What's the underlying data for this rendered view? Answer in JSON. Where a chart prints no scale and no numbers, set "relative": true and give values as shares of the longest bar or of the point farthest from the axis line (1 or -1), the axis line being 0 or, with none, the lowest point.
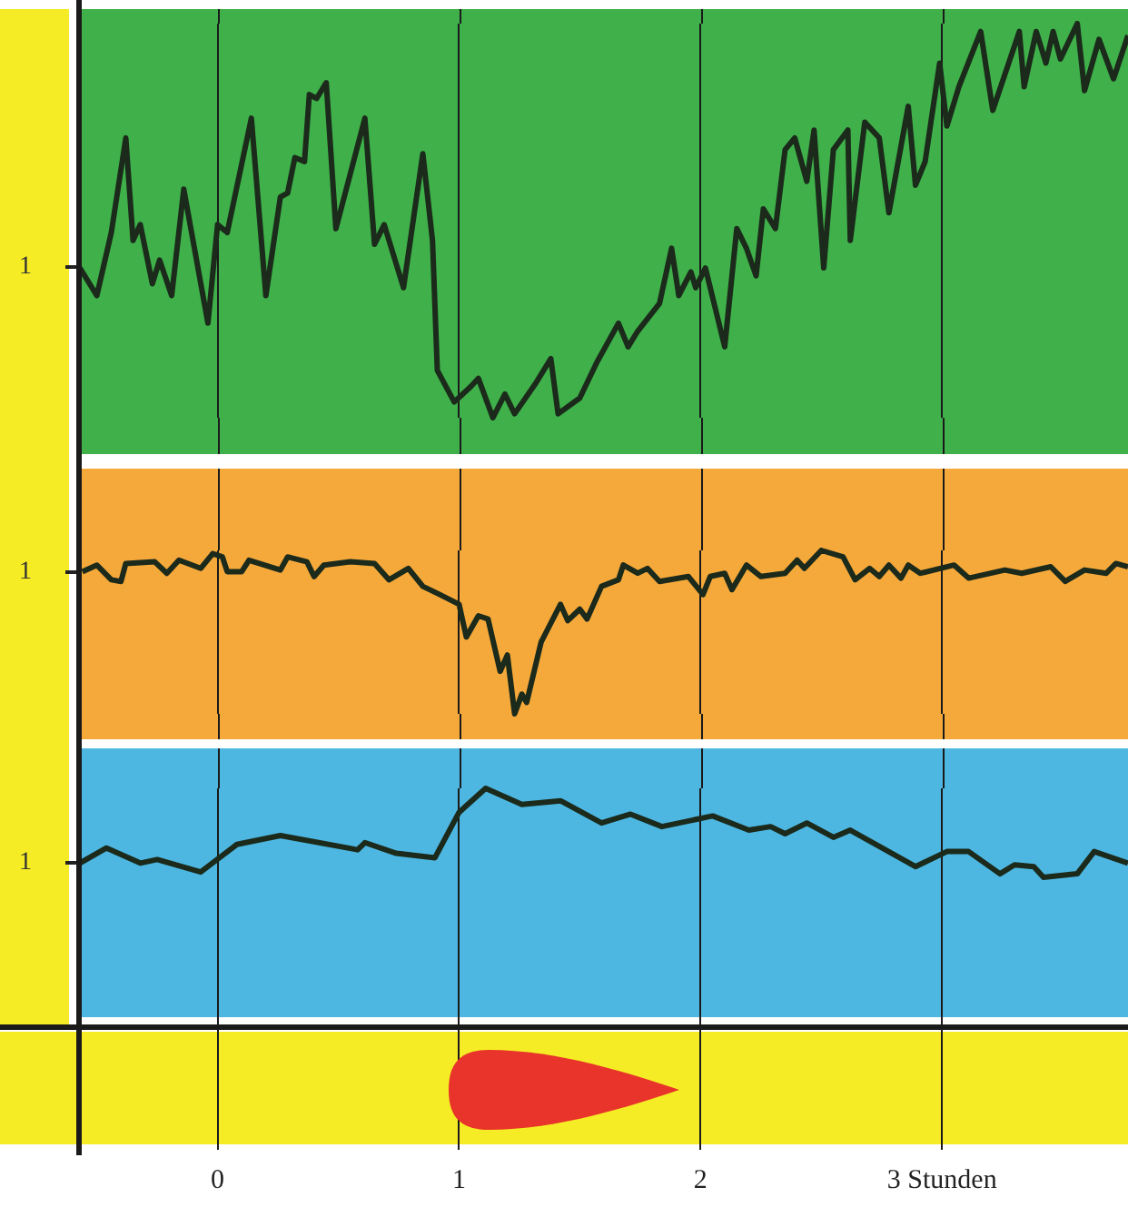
{
  "chart_data": [
    {
      "type": "line",
      "relative": true,
      "xlim": [
        -0.57,
        3.77
      ],
      "xticks": [
        0,
        1,
        2,
        3
      ],
      "grid": "x",
      "legend": false,
      "marker": "none",
      "line_style": "solid",
      "tick_labels": false,
      "annotations": [
        "1"
      ],
      "series": [
        {
          "color": "#1b2a1b",
          "x": [
            -0.57,
            -0.5,
            -0.44,
            -0.38,
            -0.35,
            -0.32,
            -0.27,
            -0.24,
            -0.19,
            -0.14,
            -0.04,
            0,
            0.04,
            0.14,
            0.2,
            0.26,
            0.29,
            0.32,
            0.36,
            0.38,
            0.41,
            0.45,
            0.49,
            0.61,
            0.65,
            0.69,
            0.77,
            0.85,
            0.89,
            0.91,
            0.98,
            1.05,
            1.08,
            1.14,
            1.19,
            1.23,
            1.32,
            1.38,
            1.41,
            1.5,
            1.57,
            1.66,
            1.7,
            1.74,
            1.83,
            1.88,
            1.91,
            1.96,
            1.98,
            2.02,
            2.1,
            2.15,
            2.19,
            2.23,
            2.26,
            2.31,
            2.35,
            2.39,
            2.44,
            2.47,
            2.51,
            2.55,
            2.61,
            2.62,
            2.68,
            2.74,
            2.78,
            2.86,
            2.89,
            2.93,
            2.99,
            3.02,
            3.07,
            3.16,
            3.21,
            3.32,
            3.34,
            3.39,
            3.43,
            3.46,
            3.49,
            3.56,
            3.59,
            3.65,
            3.71,
            3.77
          ],
          "values": [
            0.38,
            0.31,
            0.47,
            0.71,
            0.45,
            0.49,
            0.34,
            0.4,
            0.31,
            0.58,
            0.24,
            0.49,
            0.47,
            0.76,
            0.31,
            0.56,
            0.57,
            0.66,
            0.65,
            0.82,
            0.81,
            0.85,
            0.48,
            0.76,
            0.44,
            0.49,
            0.33,
            0.67,
            0.45,
            0.12,
            0.04,
            0.08,
            0.1,
            0,
            0.06,
            0.01,
            0.09,
            0.15,
            0.01,
            0.05,
            0.14,
            0.24,
            0.18,
            0.22,
            0.29,
            0.43,
            0.31,
            0.37,
            0.33,
            0.38,
            0.18,
            0.48,
            0.43,
            0.36,
            0.53,
            0.48,
            0.68,
            0.71,
            0.6,
            0.73,
            0.38,
            0.68,
            0.73,
            0.45,
            0.75,
            0.71,
            0.52,
            0.79,
            0.59,
            0.65,
            0.9,
            0.74,
            0.84,
            0.98,
            0.78,
            0.98,
            0.84,
            0.98,
            0.9,
            0.98,
            0.91,
            1,
            0.83,
            0.96,
            0.86,
            0.97
          ]
        }
      ]
    },
    {
      "type": "line",
      "relative": true,
      "xlim": [
        -0.57,
        3.77
      ],
      "xticks": [
        0,
        1,
        2,
        3
      ],
      "grid": "x",
      "legend": false,
      "marker": "none",
      "line_style": "solid",
      "tick_labels": false,
      "annotations": [
        "1"
      ],
      "series": [
        {
          "color": "#1b2a1b",
          "x": [
            -0.56,
            -0.5,
            -0.44,
            -0.4,
            -0.38,
            -0.26,
            -0.21,
            -0.16,
            -0.07,
            -0.02,
            0.02,
            0.04,
            0.1,
            0.13,
            0.26,
            0.29,
            0.37,
            0.4,
            0.44,
            0.55,
            0.65,
            0.71,
            0.79,
            0.85,
            0.92,
            1,
            1.03,
            1.08,
            1.12,
            1.17,
            1.2,
            1.23,
            1.26,
            1.28,
            1.34,
            1.42,
            1.45,
            1.5,
            1.53,
            1.59,
            1.66,
            1.68,
            1.74,
            1.78,
            1.83,
            1.95,
            2.01,
            2.04,
            2.1,
            2.13,
            2.19,
            2.25,
            2.35,
            2.4,
            2.43,
            2.5,
            2.59,
            2.64,
            2.7,
            2.74,
            2.78,
            2.83,
            2.86,
            2.91,
            3.05,
            3.11,
            3.26,
            3.33,
            3.45,
            3.51,
            3.59,
            3.68,
            3.72,
            3.77
          ],
          "values": [
            0.87,
            0.91,
            0.82,
            0.81,
            0.92,
            0.93,
            0.86,
            0.94,
            0.89,
            0.98,
            0.96,
            0.87,
            0.87,
            0.94,
            0.88,
            0.96,
            0.93,
            0.84,
            0.91,
            0.93,
            0.92,
            0.82,
            0.89,
            0.78,
            0.73,
            0.67,
            0.47,
            0.6,
            0.58,
            0.26,
            0.36,
            0,
            0.12,
            0.07,
            0.44,
            0.67,
            0.57,
            0.64,
            0.58,
            0.78,
            0.82,
            0.91,
            0.86,
            0.89,
            0.81,
            0.84,
            0.73,
            0.84,
            0.86,
            0.76,
            0.91,
            0.84,
            0.86,
            0.94,
            0.89,
            1,
            0.96,
            0.82,
            0.89,
            0.84,
            0.91,
            0.83,
            0.91,
            0.86,
            0.91,
            0.83,
            0.88,
            0.86,
            0.9,
            0.81,
            0.88,
            0.86,
            0.92,
            0.9
          ]
        }
      ]
    },
    {
      "type": "line",
      "relative": true,
      "xlim": [
        -0.57,
        3.77
      ],
      "xticks": [
        0,
        1,
        2,
        {
          "value": 3,
          "label": "3 Stunden"
        }
      ],
      "grid": "x",
      "legend": false,
      "marker": "none",
      "line_style": "solid",
      "tick_labels": "x",
      "annotations": [
        "1"
      ],
      "series": [
        {
          "color": "#1b2a1b",
          "x": [
            -0.57,
            -0.46,
            -0.32,
            -0.25,
            -0.07,
            0.08,
            0.26,
            0.58,
            0.61,
            0.74,
            0.9,
            1,
            1.11,
            1.26,
            1.42,
            1.59,
            1.71,
            1.84,
            2.05,
            2.2,
            2.29,
            2.35,
            2.44,
            2.55,
            2.62,
            2.89,
            3.02,
            3.11,
            3.24,
            3.3,
            3.38,
            3.42,
            3.56,
            3.63,
            3.77
          ],
          "values": [
            0.16,
            0.33,
            0.16,
            0.2,
            0.06,
            0.37,
            0.47,
            0.31,
            0.39,
            0.27,
            0.22,
            0.73,
            1,
            0.82,
            0.86,
            0.61,
            0.71,
            0.57,
            0.69,
            0.53,
            0.57,
            0.49,
            0.61,
            0.45,
            0.53,
            0.12,
            0.29,
            0.29,
            0.04,
            0.14,
            0.12,
            0,
            0.04,
            0.29,
            0.16
          ]
        }
      ]
    }
  ]
}
